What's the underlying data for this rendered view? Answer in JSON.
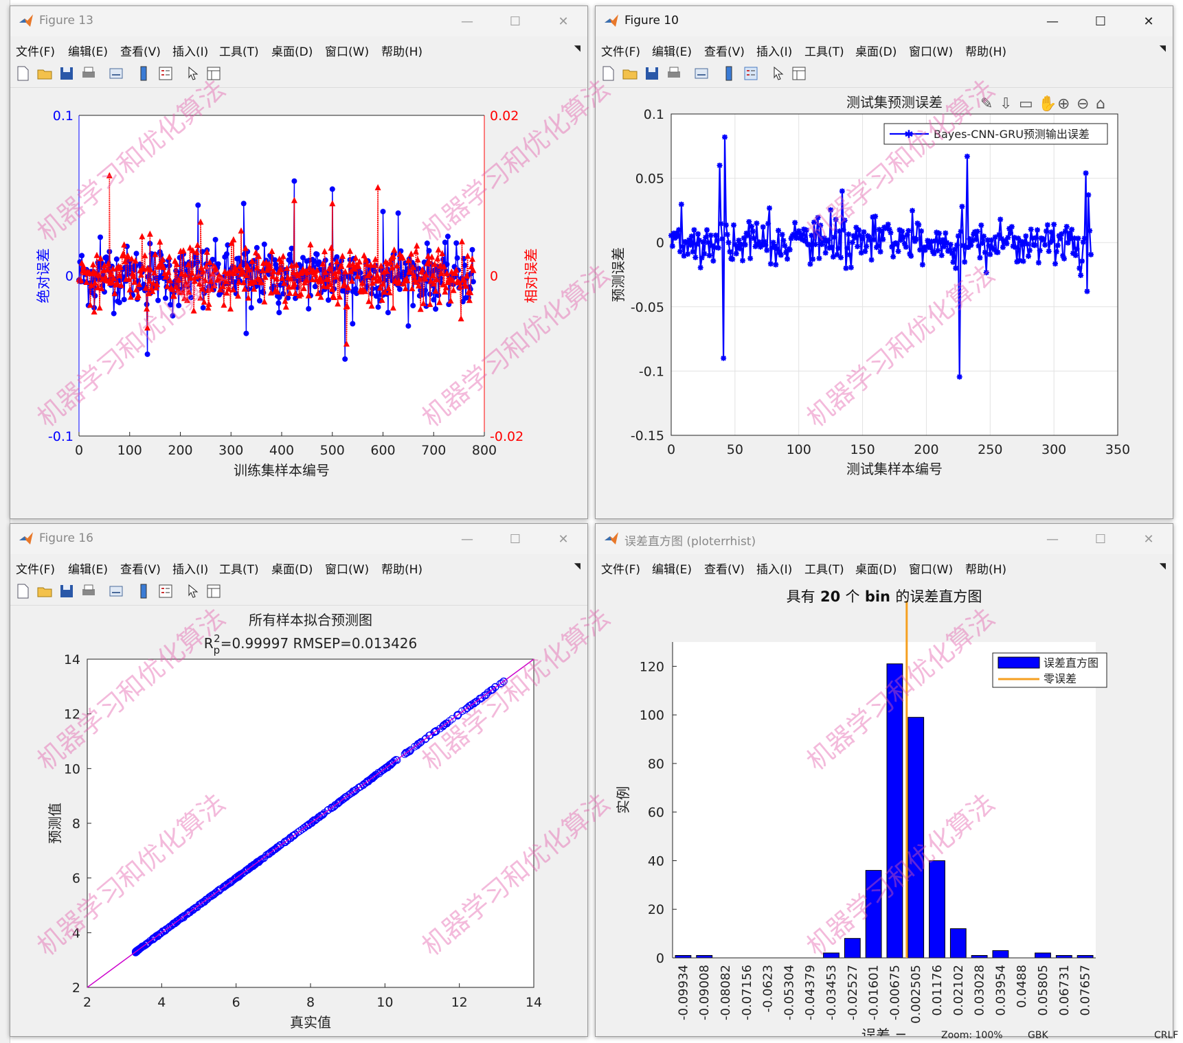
{
  "desktop": {
    "statusbar": {
      "zoom": "Zoom: 100%",
      "encoding": "GBK",
      "eol": "CRLF"
    },
    "watermark": "机器学习和优化算法"
  },
  "menus": [
    "文件(F)",
    "编辑(E)",
    "查看(V)",
    "插入(I)",
    "工具(T)",
    "桌面(D)",
    "窗口(W)",
    "帮助(H)"
  ],
  "windows": {
    "fig13": {
      "title": "Figure 13",
      "chart_data": {
        "type": "line",
        "xlabel": "训练集样本编号",
        "ylabel_left": "绝对误差",
        "ylabel_right": "相对误差",
        "xlim": [
          0,
          800
        ],
        "ylim_left": [
          -0.1,
          0.1
        ],
        "ylim_right": [
          -0.02,
          0.02
        ],
        "x_ticks": [
          "0",
          "100",
          "200",
          "300",
          "400",
          "500",
          "600",
          "700",
          "800"
        ],
        "y_ticks_left": [
          "0.1",
          "0",
          "-0.1"
        ],
        "y_ticks_right": [
          "0.02",
          "0",
          "-0.02"
        ],
        "series": [
          {
            "color": "#0000ff",
            "marker": "circle",
            "highlights": [
              [
                30,
                -0.02
              ],
              [
                42,
                0.024
              ],
              [
                60,
                0.015
              ],
              [
                135,
                -0.049
              ],
              [
                140,
                0.02
              ],
              [
                185,
                -0.025
              ],
              [
                235,
                0.044
              ],
              [
                245,
                -0.02
              ],
              [
                325,
                0.045
              ],
              [
                330,
                -0.036
              ],
              [
                340,
                -0.02
              ],
              [
                395,
                -0.023
              ],
              [
                425,
                0.059
              ],
              [
                500,
                0.054
              ],
              [
                525,
                -0.052
              ],
              [
                540,
                -0.03
              ],
              [
                600,
                0.04
              ],
              [
                610,
                -0.023
              ],
              [
                630,
                0.039
              ],
              [
                700,
                -0.015
              ]
            ]
          },
          {
            "color": "#ff0000",
            "marker": "triangle",
            "highlights": [
              [
                30,
                -0.0045
              ],
              [
                60,
                0.0125
              ],
              [
                135,
                -0.0065
              ],
              [
                140,
                0.0052
              ],
              [
                240,
                0.0067
              ],
              [
                255,
                -0.004
              ],
              [
                305,
                0.0045
              ],
              [
                320,
                0.0056
              ],
              [
                425,
                0.0094
              ],
              [
                500,
                0.009
              ],
              [
                528,
                -0.0085
              ],
              [
                590,
                0.011
              ],
              [
                620,
                -0.004
              ],
              [
                665,
                0.003
              ]
            ]
          }
        ]
      }
    },
    "fig10": {
      "title": "Figure 10",
      "chart_data": {
        "type": "line",
        "title": "测试集预测误差",
        "xlabel": "测试集样本编号",
        "ylabel": "预测误差",
        "xlim": [
          0,
          350
        ],
        "ylim": [
          -0.15,
          0.1
        ],
        "x_ticks": [
          "0",
          "50",
          "100",
          "150",
          "200",
          "250",
          "300",
          "350"
        ],
        "y_ticks": [
          "0.1",
          "0.05",
          "0",
          "-0.05",
          "-0.1",
          "-0.15"
        ],
        "grid": true,
        "legend": "top-right",
        "series": [
          {
            "name": "Bayes-CNN-GRU预测输出误差",
            "color": "#0000ff",
            "marker": "asterisk",
            "highlights": [
              [
                36,
                0.0015
              ],
              [
                38,
                0.06
              ],
              [
                41,
                -0.09
              ],
              [
                42,
                0.082
              ],
              [
                57,
                0.0035
              ],
              [
                100,
                0.009
              ],
              [
                134,
                0.04
              ],
              [
                137,
                -0.02
              ],
              [
                223,
                -0.02
              ],
              [
                226,
                -0.1045
              ],
              [
                228,
                0.028
              ],
              [
                232,
                0.067
              ],
              [
                258,
                0.018
              ],
              [
                318,
                -0.005
              ],
              [
                320,
                -0.02
              ],
              [
                325,
                0.054
              ],
              [
                326,
                -0.038
              ],
              [
                327,
                0.037
              ]
            ]
          }
        ]
      }
    },
    "fig16": {
      "title": "Figure 16",
      "chart_data": {
        "type": "scatter",
        "title": "所有样本拟合预测图",
        "subtitle": "R_p^2=0.99997  RMSEP=0.013426",
        "xlabel": "真实值",
        "ylabel": "预测值",
        "xlim": [
          2,
          14
        ],
        "ylim": [
          2,
          14
        ],
        "x_ticks": [
          "2",
          "4",
          "6",
          "8",
          "10",
          "12",
          "14"
        ],
        "y_ticks": [
          "14",
          "12",
          "10",
          "8",
          "6",
          "4",
          "2"
        ],
        "series": [
          {
            "color": "#0000ff",
            "marker": "circle",
            "x_range": [
              3.3,
              13.2
            ]
          }
        ],
        "reference_line": {
          "color": "#cc00cc",
          "from": [
            2,
            2
          ],
          "to": [
            14,
            14
          ]
        }
      }
    },
    "hist": {
      "title": "误差直方图 (ploterrhist)",
      "chart_data": {
        "type": "bar",
        "title_prefix": "具有",
        "title_bins": "20",
        "title_mid": "个",
        "title_bin": "bin",
        "title_suffix": "的误差直方图",
        "xlabel": "误差 =",
        "ylabel": "实例",
        "ylim": [
          0,
          130
        ],
        "y_ticks": [
          "120",
          "100",
          "80",
          "60",
          "40",
          "20",
          "0"
        ],
        "categories": [
          "-0.09934",
          "-0.09008",
          "-0.08082",
          "-0.07156",
          "-0.0623",
          "-0.05304",
          "-0.04379",
          "-0.03453",
          "-0.02527",
          "-0.01601",
          "-0.00675",
          "0.002505",
          "0.01176",
          "0.02102",
          "0.03028",
          "0.03954",
          "0.0488",
          "0.05805",
          "0.06731",
          "0.07657"
        ],
        "values": [
          1,
          1,
          0,
          0,
          0,
          0,
          0,
          2,
          8,
          36,
          121,
          99,
          40,
          12,
          1,
          3,
          0,
          2,
          1,
          1
        ],
        "zero_line_position": 0.0,
        "legend": [
          {
            "name": "误差直方图",
            "color": "#0000ff"
          },
          {
            "name": "零误差",
            "color": "#f5a020"
          }
        ],
        "legend_placement": "top-right"
      }
    }
  }
}
